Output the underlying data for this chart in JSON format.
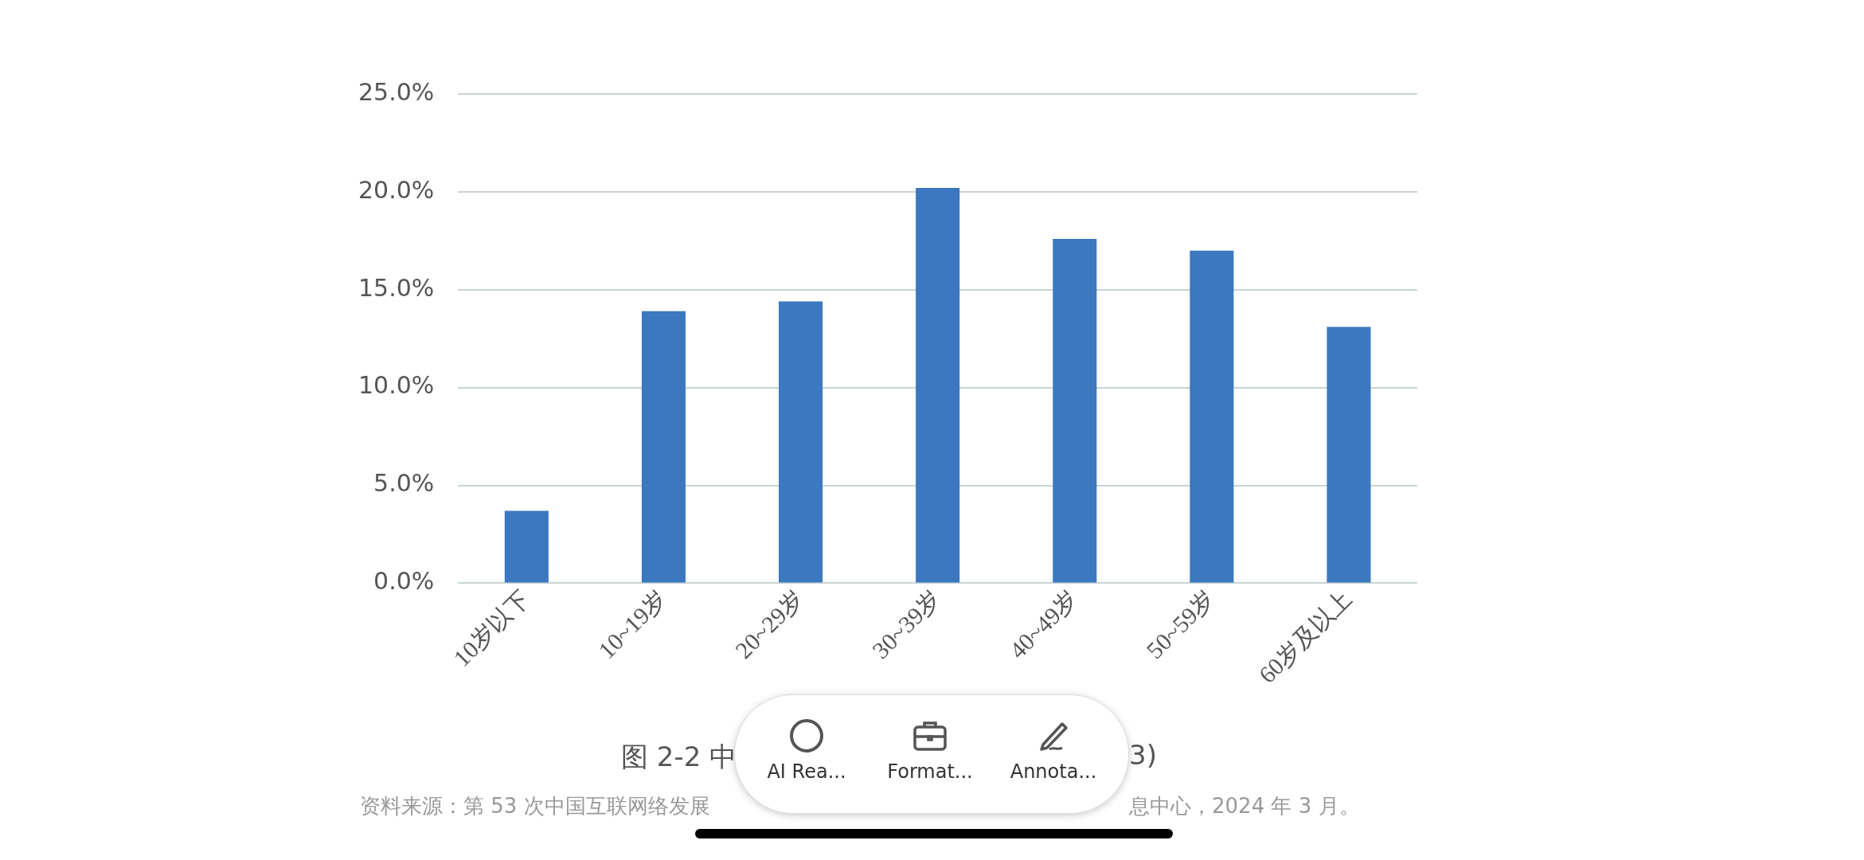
{
  "chart_data": {
    "type": "bar",
    "categories": [
      "10岁以下",
      "10~19岁",
      "20~29岁",
      "30~39岁",
      "40~49岁",
      "50~59岁",
      "60岁及以上"
    ],
    "values": [
      3.7,
      13.9,
      14.4,
      20.2,
      17.6,
      17.0,
      13.1
    ],
    "color": "#3b78c0",
    "ylim": [
      0,
      25
    ],
    "yticks": [
      {
        "value": 0,
        "label": "0.0%"
      },
      {
        "value": 5,
        "label": "5.0%"
      },
      {
        "value": 10,
        "label": "10.0%"
      },
      {
        "value": 15,
        "label": "15.0%"
      },
      {
        "value": 20,
        "label": "20.0%"
      },
      {
        "value": 25,
        "label": "25.0%"
      }
    ],
    "grid": "y",
    "legend": false,
    "annotations": [
      "图 2-2 中",
      "3)",
      "资料来源：第 53 次中国互联网络发展",
      "息中心，2024 年 3 月。",
      "AI Rea...",
      "Format...",
      "Annota..."
    ]
  }
}
